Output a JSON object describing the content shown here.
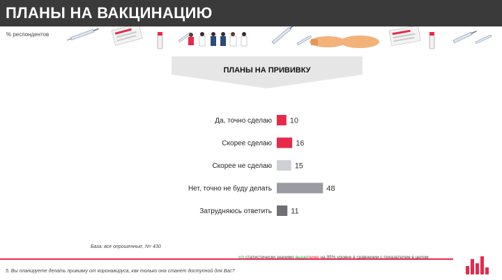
{
  "header": {
    "title": "ПЛАНЫ НА ВАКЦИНАЦИЮ"
  },
  "subtitle": "% респондентов",
  "banner": {
    "title": "ПЛАНЫ НА ПРИВИВКУ"
  },
  "chart_data": {
    "type": "bar",
    "orientation": "horizontal",
    "title": "ПЛАНЫ НА ПРИВИВКУ",
    "categories": [
      "Да, точно сделаю",
      "Скорее сделаю",
      "Скорее не сделаю",
      "Нет, точно не буду делать",
      "Затрудняюсь ответить"
    ],
    "values": [
      10,
      16,
      15,
      48,
      11
    ],
    "colors": [
      "#e8294a",
      "#e8294a",
      "#cfcfd6",
      "#9a9aa2",
      "#6f6f74"
    ],
    "data_labels": [
      "10",
      "16",
      "15",
      "48",
      "11"
    ]
  },
  "footnotes": {
    "base": "База: все опрошенные, N= 430",
    "legend_marker": "х/х",
    "legend_text_1": " статистически значимо ",
    "legend_higher": "выше",
    "legend_sep": "/",
    "legend_lower": "ниже",
    "legend_text_2": " на 95% уровне в сравнении с показателем в целом",
    "question": "5. Вы планируете делать прививку от коронавируса, как только она станет доступной для Вас?"
  },
  "colors": {
    "accent": "#e8294a",
    "header_bg": "#3a3a3a",
    "banner_bg": "#e6e6e6"
  }
}
